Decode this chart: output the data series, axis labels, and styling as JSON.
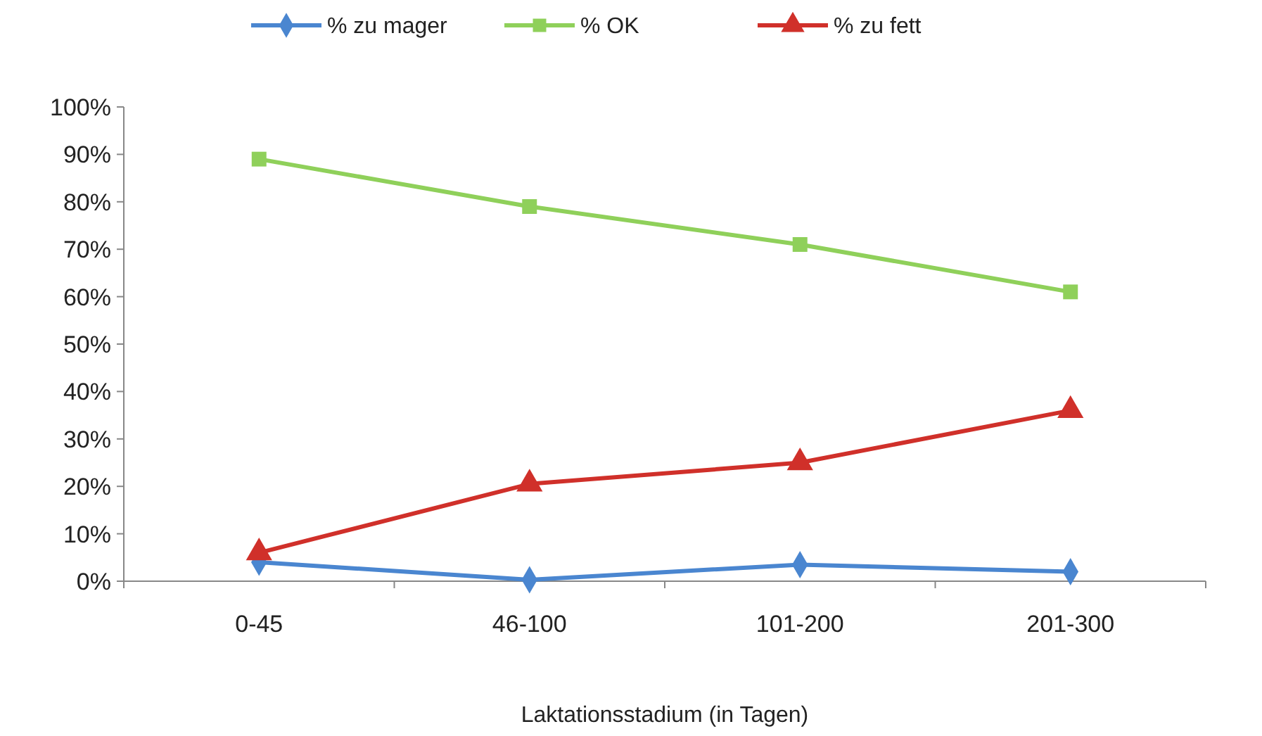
{
  "chart_data": {
    "type": "line",
    "xlabel": "Laktationsstadium (in Tagen)",
    "categories": [
      "0-45",
      "46-100",
      "101-200",
      "201-300"
    ],
    "series": [
      {
        "name": "% zu mager",
        "color": "#4a86d0",
        "marker": "diamond",
        "values": [
          4,
          0.3,
          3.5,
          2
        ]
      },
      {
        "name": "% OK",
        "color": "#8fd05a",
        "marker": "square",
        "values": [
          89,
          79,
          71,
          61
        ]
      },
      {
        "name": "% zu fett",
        "color": "#d0302a",
        "marker": "triangle",
        "values": [
          6,
          20.5,
          25,
          36
        ]
      }
    ],
    "ylim": [
      0,
      100
    ],
    "yticks": [
      {
        "value": 0,
        "label": "0%"
      },
      {
        "value": 10,
        "label": "10%"
      },
      {
        "value": 20,
        "label": "20%"
      },
      {
        "value": 30,
        "label": "30%"
      },
      {
        "value": 40,
        "label": "40%"
      },
      {
        "value": 50,
        "label": "50%"
      },
      {
        "value": 60,
        "label": "60%"
      },
      {
        "value": 70,
        "label": "70%"
      },
      {
        "value": 80,
        "label": "80%"
      },
      {
        "value": 90,
        "label": "90%"
      },
      {
        "value": 100,
        "label": "100%"
      }
    ],
    "grid": false,
    "legend": "top"
  }
}
